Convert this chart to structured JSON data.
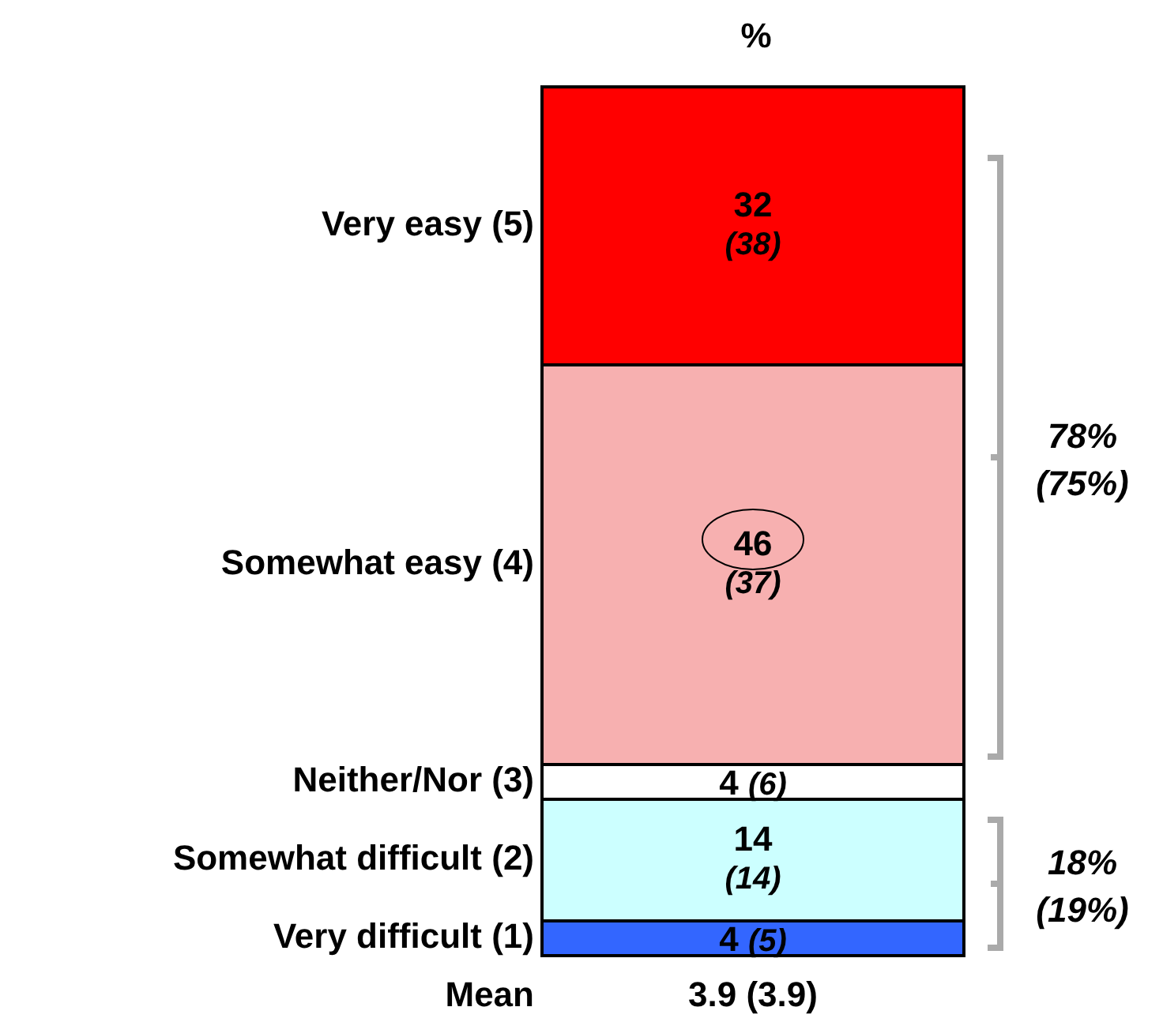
{
  "chart_data": {
    "type": "bar",
    "stacked": true,
    "title": "%",
    "categories": [
      null
    ],
    "series": [
      {
        "name": "Very difficult (1)",
        "color": "#3366ff",
        "values": [
          4
        ],
        "value_labels": [
          "4 (5)"
        ]
      },
      {
        "name": "Somewhat difficult (2)",
        "color": "#ccffff",
        "values": [
          14
        ],
        "value_labels": [
          "14 (14)"
        ]
      },
      {
        "name": "Neither/Nor (3)",
        "color": "#ffffff",
        "values": [
          4
        ],
        "value_labels": [
          "4 (6)"
        ]
      },
      {
        "name": "Somewhat easy (4)",
        "color": "#f7b0b0",
        "values": [
          46
        ],
        "value_labels": [
          "46 (37)"
        ]
      },
      {
        "name": "Very easy (5)",
        "color": "#ff0000",
        "values": [
          32
        ],
        "value_labels": [
          "32 (38)"
        ]
      }
    ],
    "annotations": [
      "78% (75%)",
      "18% (19%)",
      "Mean 3.9 (3.9)"
    ]
  }
}
